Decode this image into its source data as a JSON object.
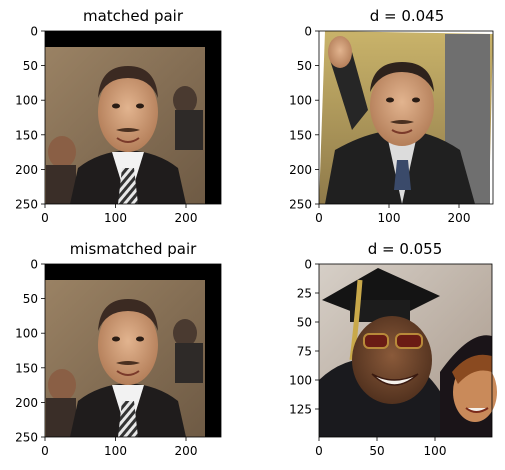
{
  "panels": [
    {
      "id": "p1",
      "title": "matched pair",
      "xticks": [
        "0",
        "100",
        "200"
      ],
      "yticks": [
        "0",
        "50",
        "100",
        "150",
        "200",
        "250"
      ],
      "image": "face-photo-matched-left"
    },
    {
      "id": "p2",
      "title": "d = 0.045",
      "xticks": [
        "0",
        "100",
        "200"
      ],
      "yticks": [
        "0",
        "50",
        "100",
        "150",
        "200",
        "250"
      ],
      "image": "face-photo-waving"
    },
    {
      "id": "p3",
      "title": "mismatched pair",
      "xticks": [
        "0",
        "100",
        "200"
      ],
      "yticks": [
        "0",
        "50",
        "100",
        "150",
        "200",
        "250"
      ],
      "image": "face-photo-mismatched-left"
    },
    {
      "id": "p4",
      "title": "d = 0.055",
      "xticks": [
        "0",
        "50",
        "100"
      ],
      "yticks": [
        "0",
        "25",
        "50",
        "75",
        "100",
        "125"
      ],
      "image": "face-photo-graduation"
    }
  ],
  "colors": {
    "frame": "#000000",
    "photo_bg_brown": "#8a7358",
    "border_black": "#000000",
    "grad_bg_gray": "#c8bfb6"
  }
}
